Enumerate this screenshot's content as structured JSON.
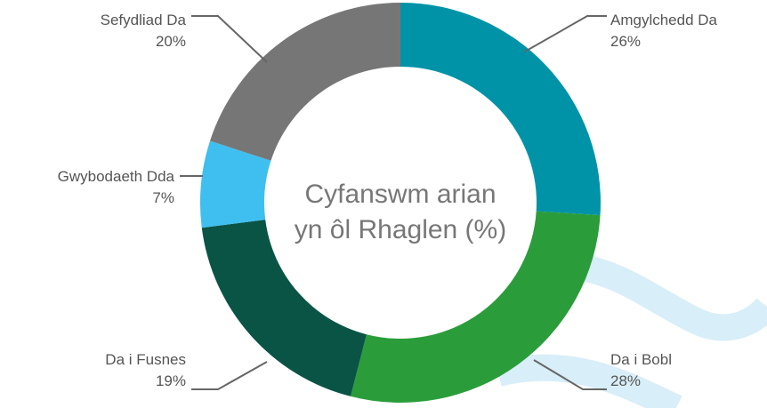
{
  "chart_data": {
    "type": "donut",
    "center_text": [
      "Cyfanswm arian",
      "yn ôl Rhaglen (%)"
    ],
    "categories": [
      "Amgylchedd Da",
      "Da i Bobl",
      "Da i Fusnes",
      "Gwybodaeth Dda",
      "Sefydliad Da"
    ],
    "values": [
      26,
      28,
      19,
      7,
      20
    ],
    "value_labels": [
      "26%",
      "28%",
      "19%",
      "7%",
      "20%"
    ],
    "colors": [
      "#0093a8",
      "#2a9d3a",
      "#0a5446",
      "#3fbfef",
      "#767676"
    ]
  }
}
